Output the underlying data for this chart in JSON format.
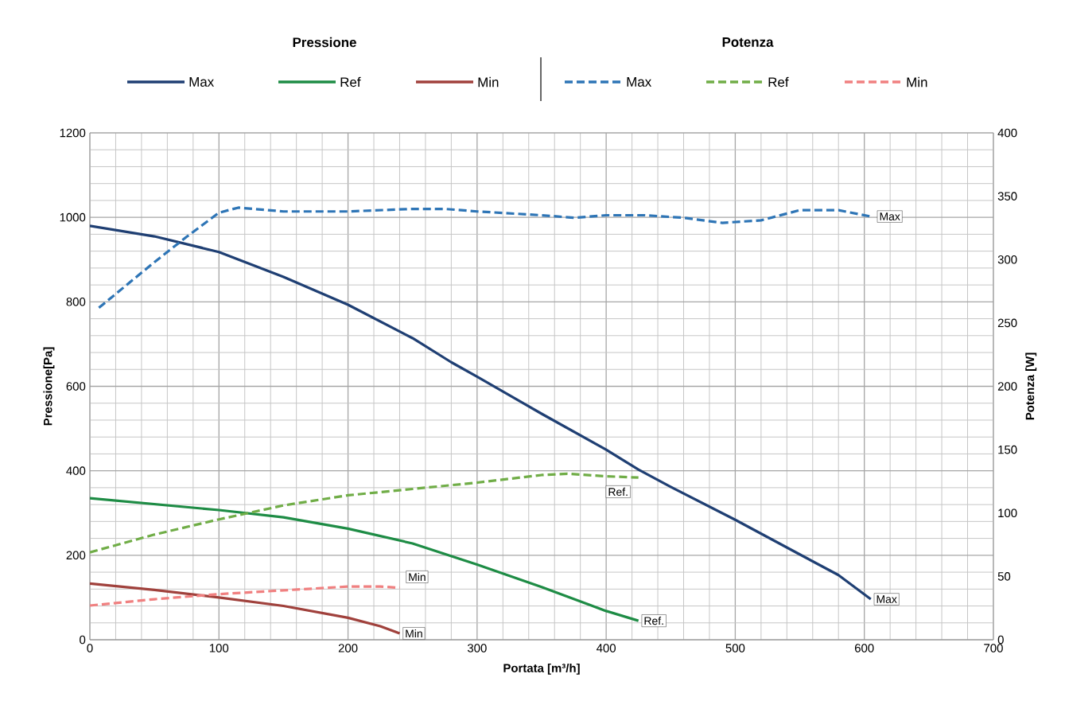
{
  "chart_data": {
    "type": "line",
    "xlabel": "Portata [m³/h]",
    "ylabel": "Pressione[Pa]",
    "y2label": "Potenza [W]",
    "xlim": [
      0,
      700
    ],
    "xticks": [
      0,
      100,
      200,
      300,
      400,
      500,
      600,
      700
    ],
    "ylim": [
      0,
      1200
    ],
    "yticks": [
      0,
      200,
      400,
      600,
      800,
      1000,
      1200
    ],
    "y2lim": [
      0,
      400
    ],
    "y2ticks": [
      0,
      50,
      100,
      150,
      200,
      250,
      300,
      350,
      400
    ],
    "grid": true,
    "legend": "top",
    "marker": "none",
    "series": [
      {
        "name": "Max",
        "color": "#1f3f73",
        "line_style": "solid",
        "x": [
          0,
          50,
          100,
          150,
          200,
          250,
          280,
          300,
          350,
          400,
          425,
          450,
          500,
          550,
          580,
          605
        ],
        "values": [
          980,
          955,
          918,
          859,
          793,
          714,
          657,
          623,
          535,
          450,
          403,
          362,
          284,
          202,
          153,
          96
        ]
      },
      {
        "name": "Ref",
        "color": "#1e8c45",
        "line_style": "solid",
        "x": [
          0,
          100,
          150,
          200,
          250,
          300,
          350,
          400,
          425
        ],
        "values": [
          335,
          307,
          290,
          263,
          228,
          178,
          125,
          68,
          45
        ]
      },
      {
        "name": "Min",
        "color": "#a0413c",
        "line_style": "solid",
        "x": [
          0,
          50,
          100,
          150,
          200,
          225,
          240
        ],
        "values": [
          133,
          118,
          100,
          80,
          52,
          32,
          15
        ]
      },
      {
        "name": "Max",
        "color": "#2e75b6",
        "line_style": "dashed",
        "axis": "y2",
        "x": [
          7,
          50,
          75,
          100,
          115,
          150,
          200,
          250,
          275,
          300,
          350,
          375,
          400,
          430,
          460,
          490,
          520,
          550,
          580,
          605
        ],
        "values": [
          262,
          298,
          318,
          337,
          341,
          338,
          338,
          340,
          340,
          338,
          335,
          333,
          335,
          335,
          333,
          329,
          331,
          339,
          339,
          334
        ]
      },
      {
        "name": "Ref",
        "color": "#70ad47",
        "line_style": "dashed",
        "axis": "y2",
        "x": [
          0,
          50,
          100,
          150,
          200,
          250,
          300,
          350,
          370,
          400,
          425
        ],
        "values": [
          69,
          83,
          95,
          106,
          114,
          119,
          124,
          130,
          131,
          129,
          128
        ]
      },
      {
        "name": "Min",
        "color": "#f08080",
        "line_style": "dashed",
        "axis": "y2",
        "x": [
          0,
          50,
          100,
          150,
          200,
          225,
          240
        ],
        "values": [
          27,
          32,
          36,
          39,
          42,
          42,
          41
        ]
      }
    ],
    "annotations": [
      "Pressione",
      "Potenza",
      "Max",
      "Ref.",
      "Min",
      {
        "text": "Max",
        "x": 605,
        "y": 96
      },
      {
        "text": "Ref.",
        "x": 425,
        "y": 45
      },
      {
        "text": "Min",
        "x": 240,
        "y": 15
      }
    ]
  }
}
